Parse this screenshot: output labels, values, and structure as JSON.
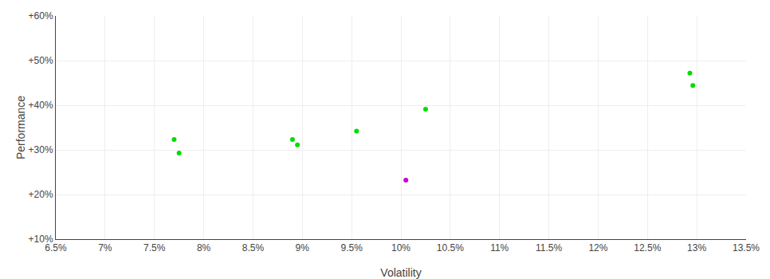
{
  "chart_data": {
    "type": "scatter",
    "xlabel": "Volatility",
    "ylabel": "Performance",
    "xlim": [
      0.065,
      0.135
    ],
    "ylim": [
      0.1,
      0.6
    ],
    "xticks": [
      {
        "value": 0.065,
        "label": "6.5%"
      },
      {
        "value": 0.07,
        "label": "7%"
      },
      {
        "value": 0.075,
        "label": "7.5%"
      },
      {
        "value": 0.08,
        "label": "8%"
      },
      {
        "value": 0.085,
        "label": "8.5%"
      },
      {
        "value": 0.09,
        "label": "9%"
      },
      {
        "value": 0.095,
        "label": "9.5%"
      },
      {
        "value": 0.1,
        "label": "10%"
      },
      {
        "value": 0.105,
        "label": "10.5%"
      },
      {
        "value": 0.11,
        "label": "11%"
      },
      {
        "value": 0.115,
        "label": "11.5%"
      },
      {
        "value": 0.12,
        "label": "12%"
      },
      {
        "value": 0.125,
        "label": "12.5%"
      },
      {
        "value": 0.13,
        "label": "13%"
      },
      {
        "value": 0.135,
        "label": "13.5%"
      }
    ],
    "yticks": [
      {
        "value": 0.1,
        "label": "+10%"
      },
      {
        "value": 0.2,
        "label": "+20%"
      },
      {
        "value": 0.3,
        "label": "+30%"
      },
      {
        "value": 0.4,
        "label": "+40%"
      },
      {
        "value": 0.5,
        "label": "+50%"
      },
      {
        "value": 0.6,
        "label": "+60%"
      }
    ],
    "grid": true,
    "series": [
      {
        "color": "#00dd00",
        "x": [
          0.077,
          0.0775,
          0.089,
          0.0895,
          0.0955,
          0.1025,
          0.1293,
          0.1296
        ],
        "values": [
          0.323,
          0.293,
          0.323,
          0.311,
          0.342,
          0.391,
          0.472,
          0.444
        ]
      },
      {
        "color": "#cc00cc",
        "x": [
          0.1005
        ],
        "values": [
          0.232
        ]
      }
    ]
  }
}
